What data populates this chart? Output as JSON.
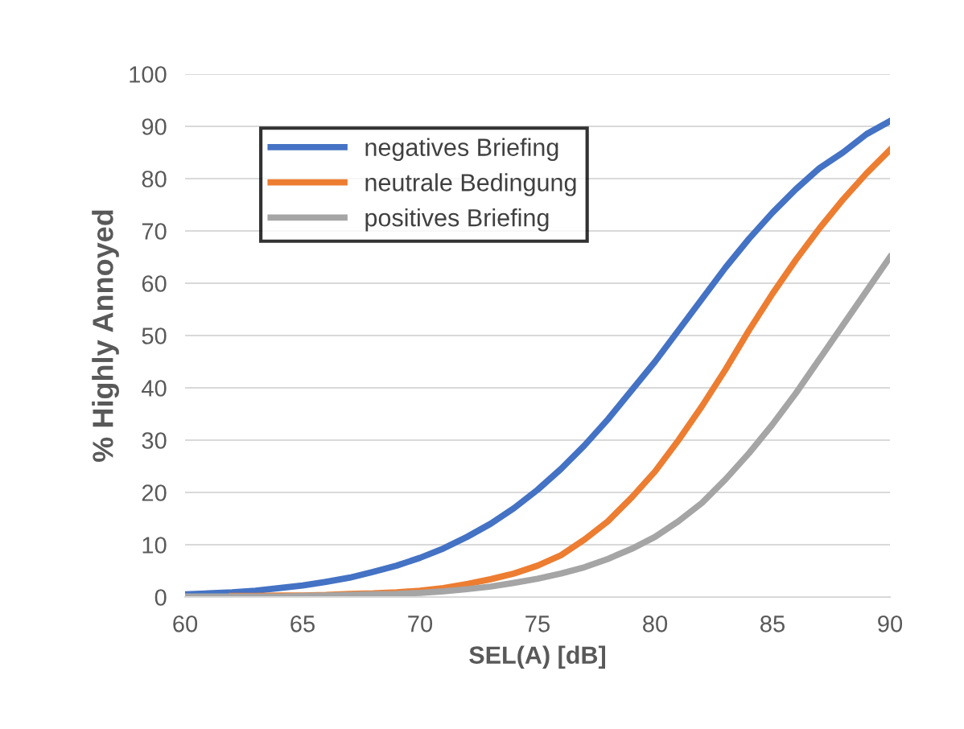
{
  "chart_data": {
    "type": "line",
    "xlabel": "SEL(A) [dB]",
    "ylabel": "% Highly Annoyed",
    "x": [
      60,
      61,
      62,
      63,
      64,
      65,
      66,
      67,
      68,
      69,
      70,
      71,
      72,
      73,
      74,
      75,
      76,
      77,
      78,
      79,
      80,
      81,
      82,
      83,
      84,
      85,
      86,
      87,
      88,
      89,
      90
    ],
    "series": [
      {
        "name": "negatives Briefing",
        "color": "#4472c4",
        "values": [
          0.5,
          0.7,
          0.9,
          1.2,
          1.7,
          2.2,
          2.9,
          3.7,
          4.8,
          6.0,
          7.5,
          9.3,
          11.5,
          14,
          17,
          20.5,
          24.5,
          29,
          34,
          39.5,
          45,
          51,
          57,
          63,
          68.5,
          73.5,
          78,
          82,
          85,
          88.5,
          91
        ]
      },
      {
        "name": "neutrale Bedingung",
        "color": "#ed7d31",
        "values": [
          null,
          null,
          0.2,
          0.2,
          0.3,
          0.3,
          0.4,
          0.6,
          0.7,
          0.9,
          1.2,
          1.7,
          2.5,
          3.4,
          4.5,
          6,
          8,
          11,
          14.5,
          19,
          24,
          30,
          36.5,
          43.5,
          51,
          58,
          64.5,
          70.5,
          76,
          81,
          85.5
        ]
      },
      {
        "name": "positives Briefing",
        "color": "#a5a5a5",
        "values": [
          0.1,
          0.1,
          0.1,
          0.1,
          0.1,
          0.2,
          0.3,
          0.4,
          0.5,
          0.6,
          0.8,
          1.1,
          1.5,
          2.0,
          2.7,
          3.5,
          4.5,
          5.7,
          7.3,
          9.2,
          11.5,
          14.5,
          18,
          22.5,
          27.5,
          33,
          39,
          45.5,
          52,
          58.5,
          65
        ]
      }
    ],
    "xlim": [
      60,
      90
    ],
    "xticks": [
      60,
      65,
      70,
      75,
      80,
      85,
      90
    ],
    "ylim": [
      0,
      100
    ],
    "yticks": [
      0,
      10,
      20,
      30,
      40,
      50,
      60,
      70,
      80,
      90,
      100
    ],
    "grid": "y",
    "legend": "top left",
    "marker": "none",
    "line_style": "solid"
  }
}
